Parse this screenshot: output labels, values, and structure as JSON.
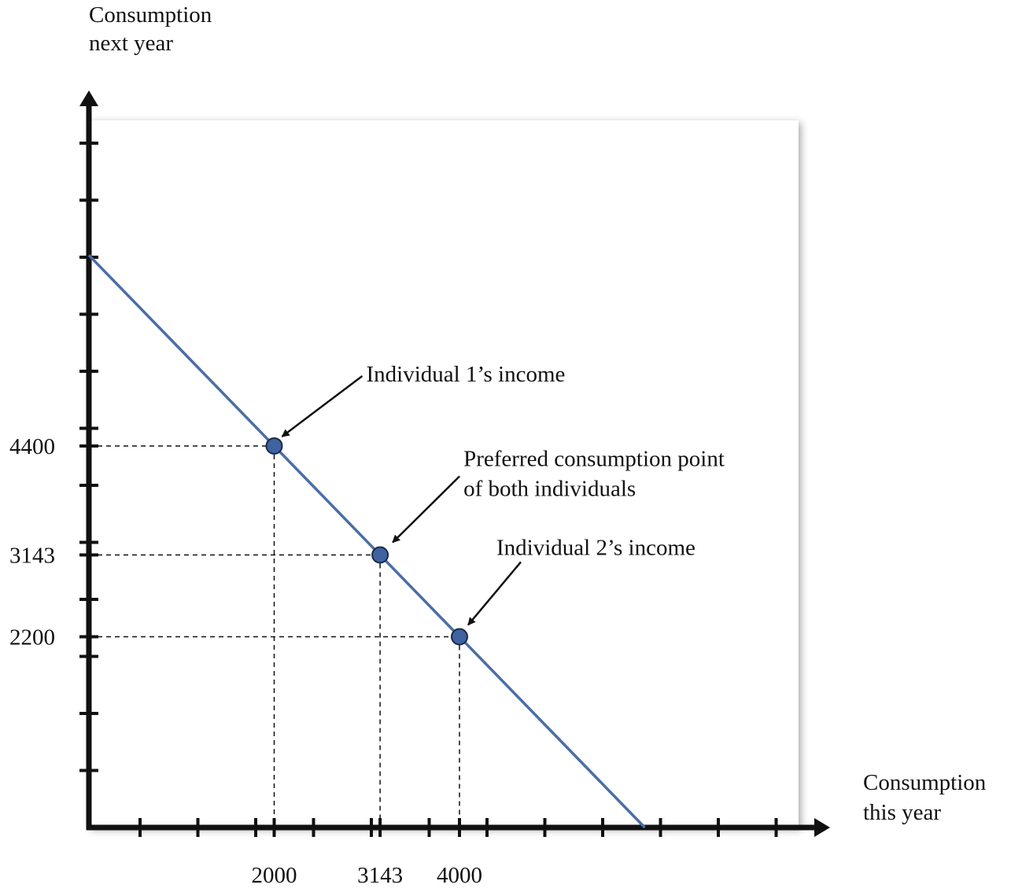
{
  "chart_data": {
    "type": "scatter",
    "y_label": [
      "Consumption",
      "next year"
    ],
    "x_label": [
      "Consumption",
      "this year"
    ],
    "xlim": [
      0,
      8000
    ],
    "ylim": [
      0,
      8500
    ],
    "xticks": [
      2000,
      3143,
      4000
    ],
    "yticks": [
      2200,
      3143,
      4400
    ],
    "line": {
      "x": [
        0,
        6000
      ],
      "y": [
        6600,
        0
      ],
      "color": "#4a6ea6"
    },
    "points": {
      "x": [
        2000,
        3143,
        4000
      ],
      "y": [
        4400,
        3143,
        2200
      ],
      "color": "#3f62a0"
    },
    "annotations": [
      [
        "Individual 1’s income"
      ],
      [
        "Preferred consumption point",
        "of both individuals"
      ],
      [
        "Individual 2’s income"
      ]
    ]
  }
}
